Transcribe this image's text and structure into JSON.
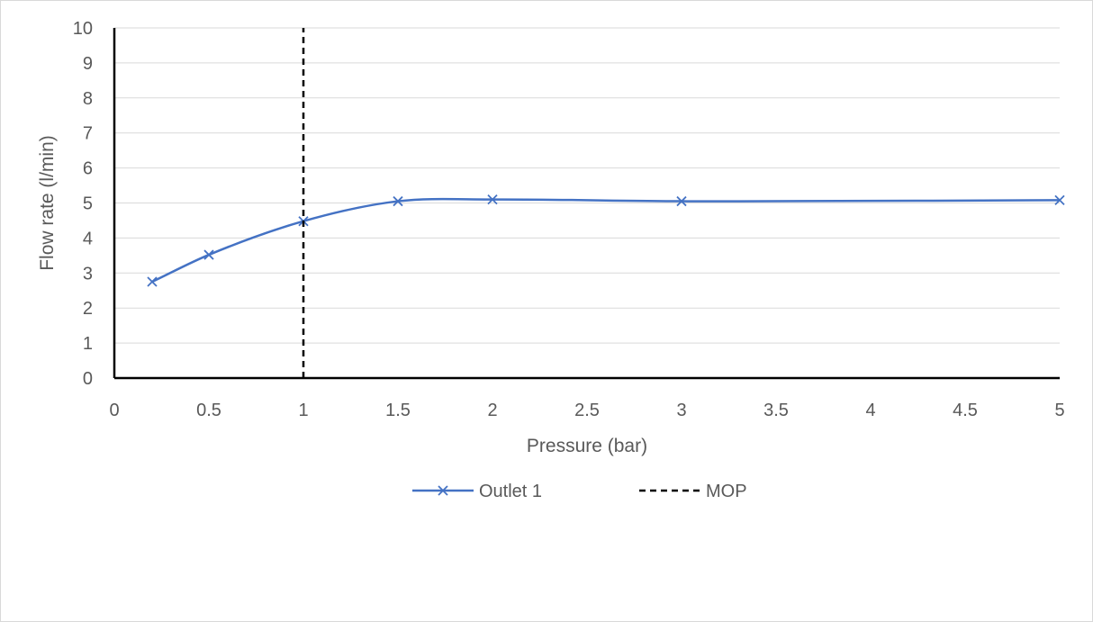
{
  "chart_data": {
    "type": "scatter",
    "title": "",
    "xlabel": "Pressure (bar)",
    "ylabel": "Flow rate (l/min)",
    "xlim": [
      0,
      5
    ],
    "ylim": [
      0,
      10
    ],
    "x_ticks": [
      "0",
      "0.5",
      "1",
      "1.5",
      "2",
      "2.5",
      "3",
      "3.5",
      "4",
      "4.5",
      "5"
    ],
    "y_ticks": [
      "0",
      "1",
      "2",
      "3",
      "4",
      "5",
      "6",
      "7",
      "8",
      "9",
      "10"
    ],
    "grid": "horizontal",
    "legend_position": "bottom",
    "series": [
      {
        "name": "Outlet 1",
        "color": "#4472c4",
        "marker": "x",
        "line": "smooth",
        "points": [
          {
            "x": 0.2,
            "y": 2.75
          },
          {
            "x": 0.5,
            "y": 3.52
          },
          {
            "x": 1.0,
            "y": 4.48
          },
          {
            "x": 1.5,
            "y": 5.05
          },
          {
            "x": 2.0,
            "y": 5.1
          },
          {
            "x": 3.0,
            "y": 5.05
          },
          {
            "x": 5.0,
            "y": 5.08
          }
        ]
      },
      {
        "name": "MOP",
        "color": "#000000",
        "line": "dashed",
        "points": [
          {
            "x": 1.0,
            "y": 0
          },
          {
            "x": 1.0,
            "y": 10
          }
        ]
      }
    ]
  }
}
